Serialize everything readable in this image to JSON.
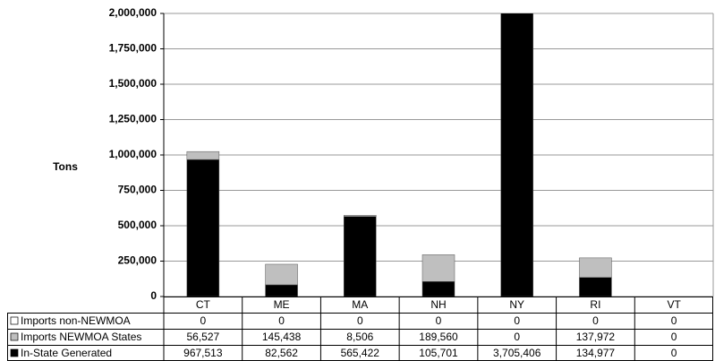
{
  "chart_data": {
    "type": "stacked-bar-table",
    "y_label": "Tons",
    "categories": [
      "CT",
      "ME",
      "MA",
      "NH",
      "NY",
      "RI",
      "VT"
    ],
    "series": [
      {
        "name": "In-State Generated",
        "color": "#000000",
        "values": [
          967513,
          82562,
          565422,
          105701,
          3705406,
          134977,
          0
        ],
        "value_labels": [
          "967,513",
          "82,562",
          "565,422",
          "105,701",
          "3,705,406",
          "134,977",
          "0"
        ]
      },
      {
        "name": "Imports NEWMOA States",
        "color": "#bfbfbf",
        "values": [
          56527,
          145438,
          8506,
          189560,
          0,
          137972,
          0
        ],
        "value_labels": [
          "56,527",
          "145,438",
          "8,506",
          "189,560",
          "0",
          "137,972",
          "0"
        ]
      },
      {
        "name": "Imports non-NEWMOA",
        "color": "#ffffff",
        "values": [
          0,
          0,
          0,
          0,
          0,
          0,
          0
        ],
        "value_labels": [
          "0",
          "0",
          "0",
          "0",
          "0",
          "0",
          "0"
        ]
      }
    ],
    "ylim": [
      0,
      2000000
    ],
    "yticks": [
      0,
      {
        "value": 250000,
        "label": "250,000"
      },
      {
        "value": 500000,
        "label": "500,000"
      },
      {
        "value": 750000,
        "label": "750,000"
      },
      {
        "value": 1000000,
        "label": "1,000,000"
      },
      {
        "value": 1250000,
        "label": "1,250,000"
      },
      {
        "value": 1500000,
        "label": "1,500,000"
      },
      {
        "value": 1750000,
        "label": "1,750,000"
      },
      {
        "value": 2000000,
        "label": "2,000,000"
      }
    ],
    "grid": true
  }
}
